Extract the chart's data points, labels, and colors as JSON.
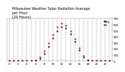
{
  "title": "Milwaukee Weather Solar Radiation Average\nper Hour\n(24 Hours)",
  "hours": [
    0,
    1,
    2,
    3,
    4,
    5,
    6,
    7,
    8,
    9,
    10,
    11,
    12,
    13,
    14,
    15,
    16,
    17,
    18,
    19,
    20,
    21,
    22,
    23
  ],
  "series1_values": [
    0,
    0,
    0,
    0,
    0,
    0,
    5,
    35,
    120,
    240,
    370,
    490,
    560,
    540,
    450,
    320,
    180,
    65,
    10,
    0,
    0,
    0,
    0,
    0
  ],
  "series1_color": "#000000",
  "series1_label": "Avg",
  "series2_values": [
    0,
    0,
    0,
    0,
    0,
    2,
    12,
    60,
    160,
    290,
    430,
    560,
    620,
    590,
    490,
    360,
    210,
    85,
    18,
    2,
    0,
    0,
    0,
    0
  ],
  "series2_color": "#cc0000",
  "series2_label": "Hi",
  "ylim": [
    0,
    700
  ],
  "xlim": [
    -0.5,
    23.5
  ],
  "yticks": [
    0,
    100,
    200,
    300,
    400,
    500,
    600,
    700
  ],
  "xtick_labels": [
    "0",
    "",
    "2",
    "",
    "4",
    "",
    "6",
    "",
    "8",
    "",
    "10",
    "",
    "12",
    "",
    "14",
    "",
    "16",
    "",
    "18",
    "",
    "20",
    "",
    "22",
    ""
  ],
  "xticks": [
    0,
    1,
    2,
    3,
    4,
    5,
    6,
    7,
    8,
    9,
    10,
    11,
    12,
    13,
    14,
    15,
    16,
    17,
    18,
    19,
    20,
    21,
    22,
    23
  ],
  "background_color": "#ffffff",
  "grid_color": "#888888",
  "title_fontsize": 3.5,
  "tick_fontsize": 2.8,
  "legend_fontsize": 2.8,
  "marker_size": 1.2,
  "grid_linestyle": "--",
  "grid_linewidth": 0.35
}
